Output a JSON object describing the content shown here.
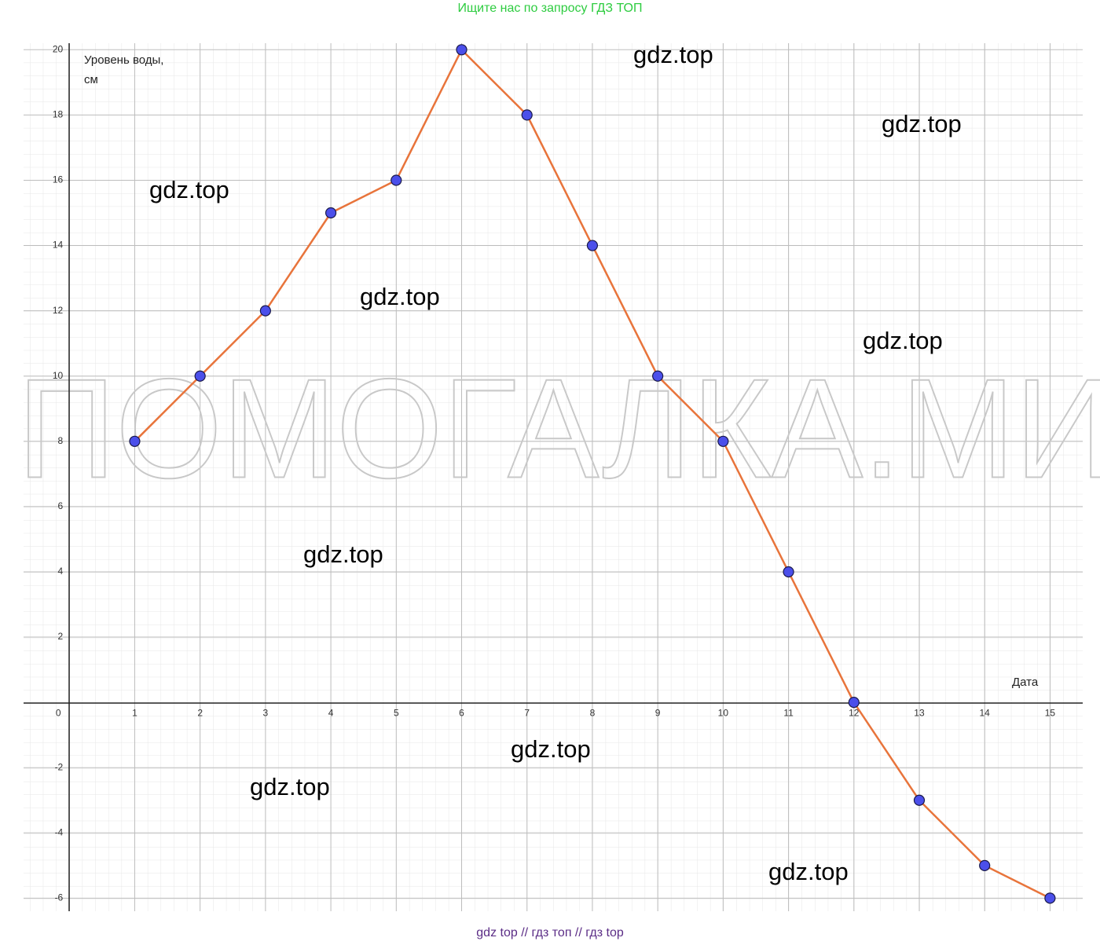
{
  "header": "Ищите нас по запросу ГДЗ ТОП",
  "footer": "gdz top  //  гдз топ  //  гдз top",
  "chart_data": {
    "type": "line",
    "ylabel": [
      "Уровень воды,",
      "см"
    ],
    "xlabel": "Дата",
    "x": [
      1,
      2,
      3,
      4,
      5,
      6,
      7,
      8,
      9,
      10,
      11,
      12,
      13,
      14,
      15
    ],
    "values": [
      8,
      10,
      12,
      15,
      16,
      20,
      18,
      14,
      10,
      8,
      4,
      0,
      -3,
      -5,
      -6
    ],
    "color": "#e8743b",
    "marker_color": "#4b4fea",
    "xlim": [
      -0.7,
      15.5
    ],
    "ylim": [
      -6.4,
      20.2
    ],
    "xticks": [
      0,
      1,
      2,
      3,
      4,
      5,
      6,
      7,
      8,
      9,
      10,
      11,
      12,
      13,
      14,
      15
    ],
    "yticks": [
      -6,
      -4,
      -2,
      2,
      4,
      6,
      8,
      10,
      12,
      14,
      16,
      18,
      20
    ],
    "grid": true
  },
  "watermarks": [
    "gdz.top",
    "gdz.top",
    "gdz.top",
    "gdz.top",
    "gdz.top",
    "gdz.top",
    "gdz.top",
    "gdz.top",
    "gdz.top"
  ],
  "watermark_big": "ПОМОГАЛКА.МИ"
}
